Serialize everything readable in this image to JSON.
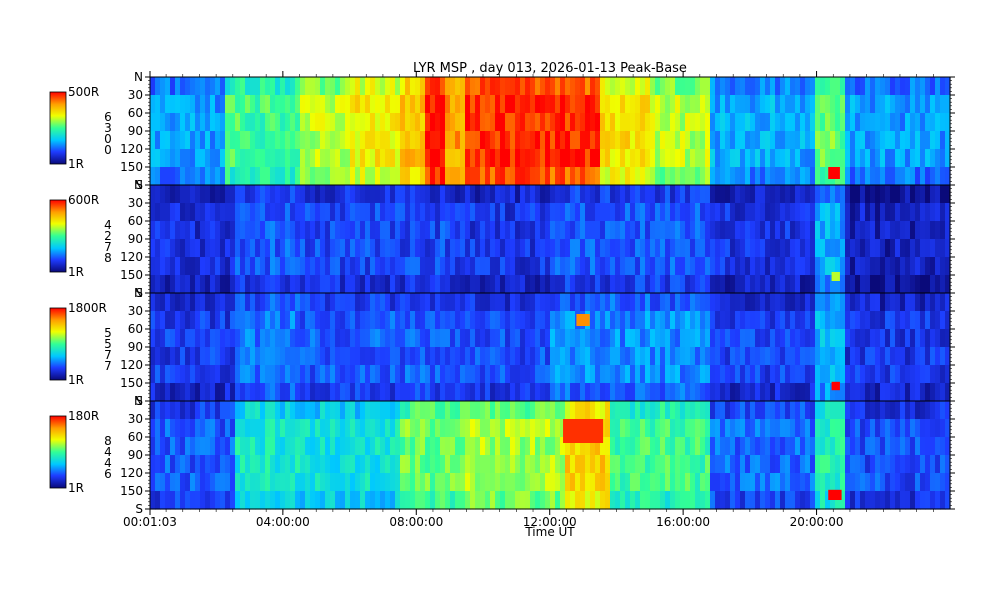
{
  "chart_data": {
    "type": "heatmap",
    "title": "LYR MSP , day 013, 2026-01-13 Peak-Base",
    "xlabel": "Time UT",
    "x_ticks": [
      "00:01:03",
      "04:00:00",
      "08:00:00",
      "12:00:00",
      "16:00:00",
      "20:00:00"
    ],
    "x_tick_hours": [
      0.0175,
      4,
      8,
      12,
      16,
      20
    ],
    "xlim_hours": [
      0.0175,
      24
    ],
    "y_ticks": [
      "N",
      "30",
      "60",
      "90",
      "120",
      "150",
      "S"
    ],
    "y_tick_values": [
      0,
      30,
      60,
      90,
      120,
      150,
      180
    ],
    "ylim": [
      0,
      180
    ],
    "colormap": [
      "#0a0a7a",
      "#1e3cff",
      "#00c8ff",
      "#32ff96",
      "#f0ff00",
      "#ffa000",
      "#ff0000"
    ],
    "panels": [
      {
        "scale_max": "500R",
        "scale_min": "1R",
        "channel_digits": [
          "6",
          "3",
          "0",
          "0"
        ],
        "background_level": 0.3,
        "activity": [
          {
            "t0": 0.0,
            "t1": 2.3,
            "level": 0.28
          },
          {
            "t0": 2.3,
            "t1": 3.0,
            "level": 0.5
          },
          {
            "t0": 3.0,
            "t1": 4.5,
            "level": 0.5
          },
          {
            "t0": 4.5,
            "t1": 6.0,
            "level": 0.62
          },
          {
            "t0": 6.0,
            "t1": 7.5,
            "level": 0.7
          },
          {
            "t0": 7.5,
            "t1": 8.2,
            "level": 0.78
          },
          {
            "t0": 8.2,
            "t1": 8.9,
            "level": 1.0
          },
          {
            "t0": 8.9,
            "t1": 9.5,
            "level": 0.82
          },
          {
            "t0": 9.5,
            "t1": 13.5,
            "level": 0.96
          },
          {
            "t0": 13.5,
            "t1": 15.0,
            "level": 0.72
          },
          {
            "t0": 15.0,
            "t1": 16.8,
            "level": 0.62
          },
          {
            "t0": 16.8,
            "t1": 20.0,
            "level": 0.3
          },
          {
            "t0": 20.0,
            "t1": 20.8,
            "level": 0.55
          },
          {
            "t0": 20.8,
            "t1": 24.0,
            "level": 0.28
          }
        ],
        "hotspots": [
          {
            "t0": 20.35,
            "t1": 20.7,
            "lat0": 150,
            "lat1": 170,
            "level": 1.0
          }
        ]
      },
      {
        "scale_max": "600R",
        "scale_min": "1R",
        "channel_digits": [
          "4",
          "2",
          "7",
          "8"
        ],
        "background_level": 0.12,
        "activity": [
          {
            "t0": 0.0,
            "t1": 2.5,
            "level": 0.12
          },
          {
            "t0": 2.5,
            "t1": 4.5,
            "level": 0.2
          },
          {
            "t0": 4.5,
            "t1": 9.0,
            "level": 0.17
          },
          {
            "t0": 9.0,
            "t1": 12.0,
            "level": 0.14
          },
          {
            "t0": 12.0,
            "t1": 16.8,
            "level": 0.2
          },
          {
            "t0": 16.8,
            "t1": 20.0,
            "level": 0.13
          },
          {
            "t0": 20.0,
            "t1": 20.8,
            "level": 0.3
          },
          {
            "t0": 20.8,
            "t1": 24.0,
            "level": 0.08
          }
        ],
        "hotspots": [
          {
            "t0": 20.45,
            "t1": 20.7,
            "lat0": 145,
            "lat1": 160,
            "level": 0.62
          }
        ]
      },
      {
        "scale_max": "1800R",
        "scale_min": "1R",
        "channel_digits": [
          "5",
          "5",
          "7",
          "7"
        ],
        "background_level": 0.15,
        "activity": [
          {
            "t0": 0.0,
            "t1": 2.5,
            "level": 0.15
          },
          {
            "t0": 2.5,
            "t1": 4.5,
            "level": 0.24
          },
          {
            "t0": 4.5,
            "t1": 9.0,
            "level": 0.2
          },
          {
            "t0": 9.0,
            "t1": 12.0,
            "level": 0.18
          },
          {
            "t0": 12.0,
            "t1": 16.8,
            "level": 0.26
          },
          {
            "t0": 16.8,
            "t1": 20.0,
            "level": 0.16
          },
          {
            "t0": 20.0,
            "t1": 20.8,
            "level": 0.32
          },
          {
            "t0": 20.8,
            "t1": 24.0,
            "level": 0.14
          }
        ],
        "hotspots": [
          {
            "t0": 20.45,
            "t1": 20.7,
            "lat0": 148,
            "lat1": 162,
            "level": 1.0
          },
          {
            "t0": 12.8,
            "t1": 13.2,
            "lat0": 35,
            "lat1": 55,
            "level": 0.85
          }
        ]
      },
      {
        "scale_max": "180R",
        "scale_min": "1R",
        "channel_digits": [
          "8",
          "4",
          "4",
          "6"
        ],
        "background_level": 0.2,
        "activity": [
          {
            "t0": 0.0,
            "t1": 2.5,
            "level": 0.2
          },
          {
            "t0": 2.5,
            "t1": 4.5,
            "level": 0.42
          },
          {
            "t0": 4.5,
            "t1": 7.5,
            "level": 0.4
          },
          {
            "t0": 7.5,
            "t1": 9.5,
            "level": 0.55
          },
          {
            "t0": 9.5,
            "t1": 12.5,
            "level": 0.6
          },
          {
            "t0": 12.5,
            "t1": 13.8,
            "level": 0.75
          },
          {
            "t0": 13.8,
            "t1": 16.8,
            "level": 0.5
          },
          {
            "t0": 16.8,
            "t1": 20.0,
            "level": 0.22
          },
          {
            "t0": 20.0,
            "t1": 20.8,
            "level": 0.45
          },
          {
            "t0": 20.8,
            "t1": 24.0,
            "level": 0.18
          }
        ],
        "hotspots": [
          {
            "t0": 20.35,
            "t1": 20.75,
            "lat0": 148,
            "lat1": 165,
            "level": 1.0
          },
          {
            "t0": 12.4,
            "t1": 13.6,
            "lat0": 30,
            "lat1": 70,
            "level": 0.95
          }
        ]
      }
    ]
  }
}
